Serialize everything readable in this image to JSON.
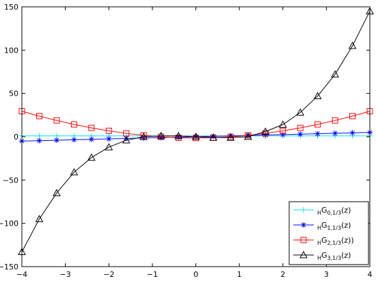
{
  "chart_data": {
    "type": "line",
    "title": "",
    "xlabel": "",
    "ylabel": "",
    "xlim": [
      -4,
      4
    ],
    "ylim": [
      -150,
      150
    ],
    "xticks": [
      -4,
      -3,
      -2,
      -1,
      0,
      1,
      2,
      3,
      4
    ],
    "yticks": [
      -150,
      -100,
      -50,
      0,
      50,
      100,
      150
    ],
    "xtick_labels": [
      "−4",
      "−3",
      "−2",
      "−1",
      "0",
      "1",
      "2",
      "3",
      "4"
    ],
    "ytick_labels": [
      "−150",
      "−100",
      "−50",
      "0",
      "50",
      "100",
      "150"
    ],
    "grid": false,
    "legend_position": "bottom-right",
    "x": [
      -4,
      -3.6,
      -3.2,
      -2.8,
      -2.4,
      -2,
      -1.6,
      -1.2,
      -0.8,
      -0.4,
      0,
      0.4,
      0.8,
      1.2,
      1.6,
      2,
      2.4,
      2.8,
      3.2,
      3.6,
      4
    ],
    "series": [
      {
        "name": "HG0,1/3(z)",
        "legend": {
          "base": "H",
          "main": "G",
          "sub": "0,1/3",
          "tail": "(z)"
        },
        "color": "#00e5ee",
        "marker": "plus",
        "values": [
          1,
          1,
          1,
          1,
          1,
          1,
          1,
          1,
          1,
          1,
          1,
          1,
          1,
          1,
          1,
          1,
          1,
          1,
          1,
          1,
          1
        ]
      },
      {
        "name": "HG1,1/3(z)",
        "legend": {
          "base": "H",
          "main": "G",
          "sub": "1,1/3",
          "tail": "(z)"
        },
        "color": "#0000ff",
        "marker": "asterisk",
        "values": [
          -5,
          -4.5,
          -4,
          -3.5,
          -3,
          -2.5,
          -2,
          -1.5,
          -1,
          -0.5,
          0,
          0.5,
          1,
          1.5,
          2,
          2.5,
          3,
          3.5,
          4,
          4.5,
          5
        ]
      },
      {
        "name": "HG2,1/3(z))",
        "legend": {
          "base": "H",
          "main": "G",
          "sub": "2,1/3",
          "tail": "(z))"
        },
        "color": "#ff0000",
        "marker": "square",
        "values": [
          29.5,
          23.8,
          18.8,
          14.2,
          10.2,
          6.8,
          3.9,
          1.6,
          -0.1,
          -1.2,
          -1.5,
          -1.2,
          -0.1,
          1.6,
          3.9,
          6.8,
          10.2,
          14.2,
          18.8,
          23.8,
          29.5
        ]
      },
      {
        "name": "HG3,1/3(z)",
        "legend": {
          "base": "H",
          "main": "G",
          "sub": "3,1/3",
          "tail": "(z)"
        },
        "color": "#000000",
        "marker": "triangle",
        "values": [
          -133,
          -95,
          -65,
          -41,
          -24,
          -12,
          -4,
          0,
          1,
          1,
          0,
          -1,
          -1,
          0,
          6,
          14,
          28,
          47,
          72,
          105,
          145
        ]
      }
    ]
  }
}
